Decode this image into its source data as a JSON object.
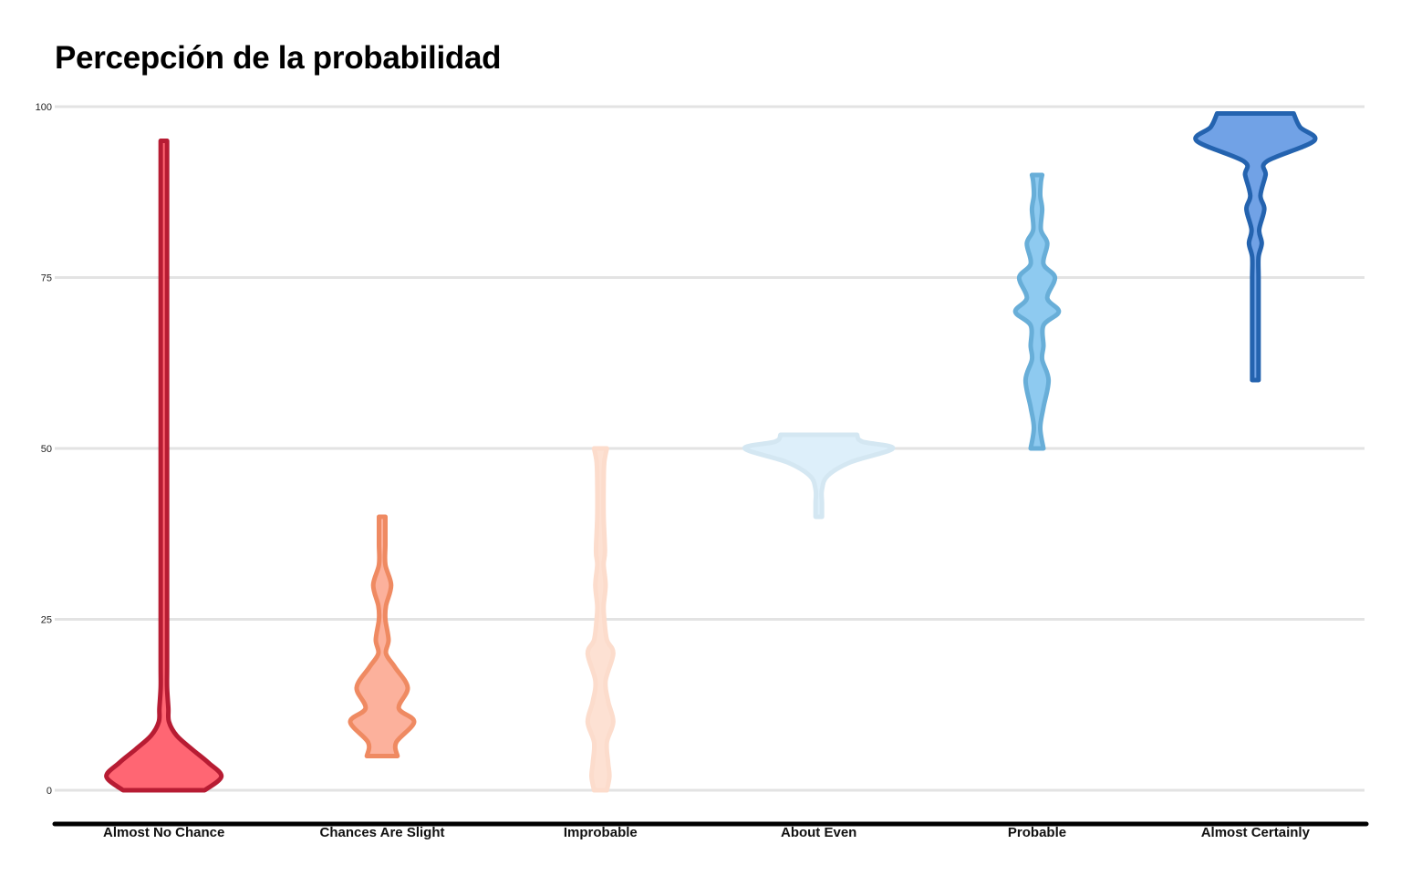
{
  "chart_data": {
    "type": "violin",
    "title": "Percepción de la probabilidad",
    "xlabel": "",
    "ylabel": "",
    "ylim": [
      0,
      100
    ],
    "yticks": [
      0,
      25,
      50,
      75,
      100
    ],
    "grid": true,
    "legend": "none",
    "categories": [
      "Almost No Chance",
      "Chances Are Slight",
      "Improbable",
      "About Even",
      "Probable",
      "Almost Certainly"
    ],
    "series": [
      {
        "category": "Almost No Chance",
        "fill": "#ff6673",
        "stroke": "#b71c33",
        "min": 0,
        "max": 95,
        "density": [
          [
            0,
            0.32
          ],
          [
            2,
            0.45
          ],
          [
            4,
            0.35
          ],
          [
            6,
            0.22
          ],
          [
            8,
            0.1
          ],
          [
            10,
            0.04
          ],
          [
            12,
            0.035
          ],
          [
            15,
            0.02
          ],
          [
            18,
            0.012
          ],
          [
            25,
            0.01
          ],
          [
            50,
            0.01
          ],
          [
            75,
            0.01
          ],
          [
            92,
            0.01
          ],
          [
            95,
            0.012
          ]
        ]
      },
      {
        "category": "Chances Are Slight",
        "fill": "#fcb19c",
        "stroke": "#ef8a62",
        "min": 5,
        "max": 40,
        "density": [
          [
            5,
            0.12
          ],
          [
            7,
            0.11
          ],
          [
            10,
            0.25
          ],
          [
            12,
            0.13
          ],
          [
            15,
            0.2
          ],
          [
            18,
            0.1
          ],
          [
            20,
            0.03
          ],
          [
            22,
            0.05
          ],
          [
            25,
            0.02
          ],
          [
            27,
            0.03
          ],
          [
            30,
            0.07
          ],
          [
            33,
            0.02
          ],
          [
            36,
            0.012
          ],
          [
            40,
            0.012
          ]
        ]
      },
      {
        "category": "Improbable",
        "fill": "#fde1d3",
        "stroke": "#fcdccc",
        "min": 0,
        "max": 50,
        "density": [
          [
            0,
            0.05
          ],
          [
            2,
            0.07
          ],
          [
            4,
            0.06
          ],
          [
            7,
            0.05
          ],
          [
            10,
            0.1
          ],
          [
            13,
            0.06
          ],
          [
            16,
            0.04
          ],
          [
            20,
            0.1
          ],
          [
            22,
            0.05
          ],
          [
            25,
            0.03
          ],
          [
            27,
            0.02
          ],
          [
            30,
            0.04
          ],
          [
            33,
            0.02
          ],
          [
            35,
            0.035
          ],
          [
            40,
            0.015
          ],
          [
            45,
            0.015
          ],
          [
            48,
            0.03
          ],
          [
            50,
            0.05
          ]
        ]
      },
      {
        "category": "About Even",
        "fill": "#ddeffa",
        "stroke": "#d4e7f2",
        "min": 40,
        "max": 52,
        "density": [
          [
            40,
            0.01
          ],
          [
            42,
            0.02
          ],
          [
            44,
            0.02
          ],
          [
            46,
            0.07
          ],
          [
            48,
            0.25
          ],
          [
            50,
            0.58
          ],
          [
            51,
            0.34
          ],
          [
            52,
            0.3
          ]
        ]
      },
      {
        "category": "Probable",
        "fill": "#8ecaf0",
        "stroke": "#68aed8",
        "min": 50,
        "max": 90,
        "density": [
          [
            50,
            0.05
          ],
          [
            53,
            0.02
          ],
          [
            56,
            0.05
          ],
          [
            60,
            0.09
          ],
          [
            63,
            0.04
          ],
          [
            65,
            0.05
          ],
          [
            68,
            0.05
          ],
          [
            70,
            0.17
          ],
          [
            72,
            0.08
          ],
          [
            75,
            0.14
          ],
          [
            77,
            0.05
          ],
          [
            80,
            0.08
          ],
          [
            82,
            0.03
          ],
          [
            85,
            0.04
          ],
          [
            87,
            0.02
          ],
          [
            89,
            0.03
          ],
          [
            90,
            0.04
          ]
        ]
      },
      {
        "category": "Almost Certainly",
        "fill": "#71a2e6",
        "stroke": "#2463af",
        "min": 60,
        "max": 99,
        "density": [
          [
            60,
            0.02
          ],
          [
            62,
            0.02
          ],
          [
            65,
            0.01
          ],
          [
            70,
            0.01
          ],
          [
            75,
            0.01
          ],
          [
            78,
            0.02
          ],
          [
            80,
            0.05
          ],
          [
            82,
            0.03
          ],
          [
            85,
            0.07
          ],
          [
            87,
            0.04
          ],
          [
            90,
            0.08
          ],
          [
            92,
            0.09
          ],
          [
            95,
            0.46
          ],
          [
            97,
            0.35
          ],
          [
            99,
            0.3
          ]
        ]
      }
    ]
  }
}
